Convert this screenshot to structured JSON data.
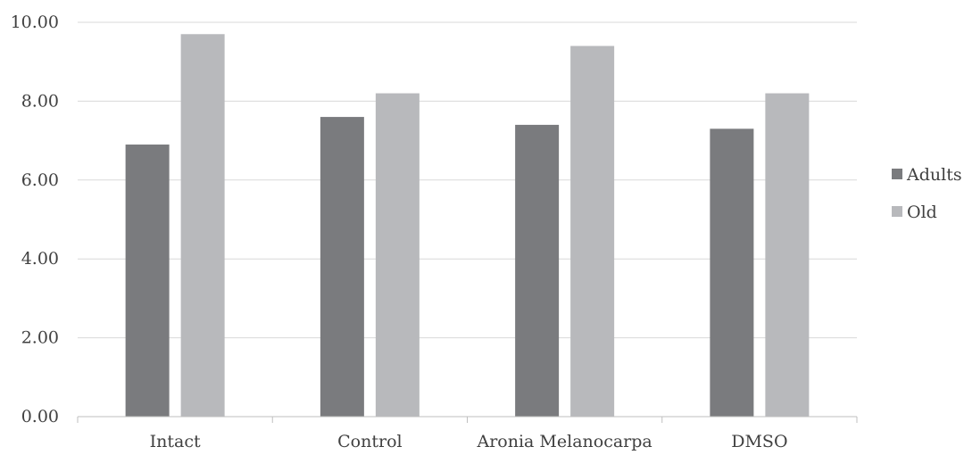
{
  "chart_data": {
    "type": "bar",
    "title": "",
    "xlabel": "",
    "ylabel": "",
    "categories": [
      "Intact",
      "Control",
      "Aronia Melanocarpa",
      "DMSO"
    ],
    "series": [
      {
        "name": "Adults",
        "values": [
          6.9,
          7.6,
          7.4,
          7.3
        ],
        "color": "#7a7b7e"
      },
      {
        "name": "Old",
        "values": [
          9.7,
          8.2,
          9.4,
          8.2
        ],
        "color": "#b8b9bc"
      }
    ],
    "ylim": [
      0,
      10
    ],
    "y_ticks": [
      "0.00",
      "2.00",
      "4.00",
      "6.00",
      "8.00",
      "10.00"
    ],
    "grid": true,
    "legend_position": "right",
    "gridline_color": "#d9d9d9",
    "axis_color": "#bfbfbf"
  }
}
